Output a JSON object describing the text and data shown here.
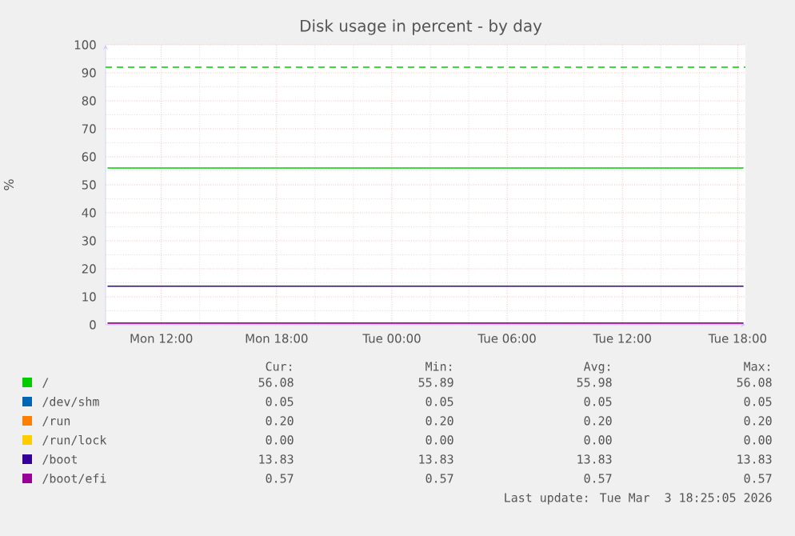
{
  "chart_data": {
    "type": "line",
    "title": "Disk usage in percent - by day",
    "ylabel": "%",
    "x": [
      "2026-03-02T09:12",
      "2026-03-03T18:18"
    ],
    "series": [
      {
        "name": "/",
        "color": "#00cc00",
        "values": [
          56.0,
          56.0
        ]
      },
      {
        "name": "/dev/shm",
        "color": "#0066b3",
        "values": [
          null,
          null
        ]
      },
      {
        "name": "/run",
        "color": "#ff8000",
        "values": [
          null,
          null
        ]
      },
      {
        "name": "/run/lock",
        "color": "#ffcc00",
        "values": [
          0,
          0
        ]
      },
      {
        "name": "/boot",
        "color": "#330099",
        "values": [
          13.8,
          13.8
        ]
      },
      {
        "name": "/boot/efi",
        "color": "#990099",
        "values": [
          0.6,
          0.6
        ]
      }
    ],
    "xlim": [
      "2026-03-02T09:06",
      "2026-03-03T18:24"
    ],
    "ylim": [
      0,
      100
    ],
    "xticks": [
      {
        "value": "2026-03-02T12:00",
        "label": "Mon 12:00"
      },
      {
        "value": "2026-03-02T18:00",
        "label": "Mon 18:00"
      },
      {
        "value": "2026-03-03T00:00",
        "label": "Tue 00:00"
      },
      {
        "value": "2026-03-03T06:00",
        "label": "Tue 06:00"
      },
      {
        "value": "2026-03-03T12:00",
        "label": "Tue 12:00"
      },
      {
        "value": "2026-03-03T18:00",
        "label": "Tue 18:00"
      }
    ],
    "yticks": [
      0,
      10,
      20,
      30,
      40,
      50,
      60,
      70,
      80,
      90,
      100
    ],
    "ref_lines": [
      {
        "axis": "y",
        "value": 92,
        "color": "#00cc00",
        "line_style": "dashed"
      }
    ],
    "grid": true,
    "legend": "bottom",
    "annotations": [
      "Cur:",
      "Min:",
      "Avg:",
      "Max:",
      "56.08",
      "55.89",
      "55.98",
      "56.08",
      "0.05",
      "0.05",
      "0.05",
      "0.05",
      "0.20",
      "0.20",
      "0.20",
      "0.20",
      "0.00",
      "0.00",
      "0.00",
      "0.00",
      "13.83",
      "13.83",
      "13.83",
      "13.83",
      "0.57",
      "0.57",
      "0.57",
      "0.57",
      "Last update: Tue Mar  3 18:25:05 2026"
    ]
  }
}
